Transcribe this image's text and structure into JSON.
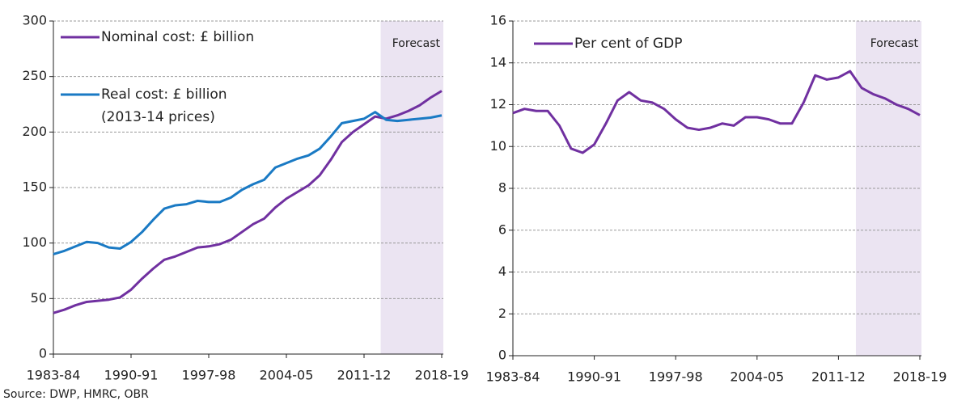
{
  "chart_data": [
    {
      "type": "line",
      "categories": [
        "1983-84",
        null,
        null,
        null,
        null,
        null,
        null,
        "1990-91",
        null,
        null,
        null,
        null,
        null,
        null,
        "1997-98",
        null,
        null,
        null,
        null,
        null,
        null,
        "2004-05",
        null,
        null,
        null,
        null,
        null,
        null,
        "2011-12",
        null,
        null,
        null,
        null,
        null,
        null,
        "2018-19"
      ],
      "series": [
        {
          "name": "Nominal cost: £ billion",
          "color": "#7030a0",
          "values": [
            37,
            40,
            44,
            47,
            48,
            49,
            51,
            58,
            68,
            77,
            85,
            88,
            92,
            96,
            97,
            99,
            103,
            110,
            117,
            122,
            132,
            140,
            146,
            152,
            161,
            175,
            191,
            200,
            207,
            214,
            212,
            215,
            219,
            224,
            231,
            237
          ]
        },
        {
          "name": "Real cost: £ billion\n(2013-14 prices)",
          "color": "#1a7ac4",
          "values": [
            90,
            93,
            97,
            101,
            100,
            96,
            95,
            101,
            110,
            121,
            131,
            134,
            135,
            138,
            137,
            137,
            141,
            148,
            153,
            157,
            168,
            172,
            176,
            179,
            185,
            196,
            208,
            210,
            212,
            218,
            211,
            210,
            211,
            212,
            213,
            215
          ]
        }
      ],
      "ylim": [
        0,
        300
      ],
      "yticks": [
        0,
        50,
        100,
        150,
        200,
        250,
        300
      ],
      "grid": true,
      "shaded_region": {
        "label": "Forecast",
        "from_index": 30,
        "color": "#ebe4f2"
      }
    },
    {
      "type": "line",
      "categories": [
        "1983-84",
        null,
        null,
        null,
        null,
        null,
        null,
        "1990-91",
        null,
        null,
        null,
        null,
        null,
        null,
        "1997-98",
        null,
        null,
        null,
        null,
        null,
        null,
        "2004-05",
        null,
        null,
        null,
        null,
        null,
        null,
        "2011-12",
        null,
        null,
        null,
        null,
        null,
        null,
        "2018-19"
      ],
      "series": [
        {
          "name": "Per cent of GDP",
          "color": "#7030a0",
          "values": [
            11.6,
            11.8,
            11.7,
            11.7,
            11.0,
            9.9,
            9.7,
            10.1,
            11.1,
            12.2,
            12.6,
            12.2,
            12.1,
            11.8,
            11.3,
            10.9,
            10.8,
            10.9,
            11.1,
            11.0,
            11.4,
            11.4,
            11.3,
            11.1,
            11.1,
            12.1,
            13.4,
            13.2,
            13.3,
            13.6,
            12.8,
            12.5,
            12.3,
            12.0,
            11.8,
            11.5
          ]
        }
      ],
      "ylim": [
        0,
        16
      ],
      "yticks": [
        0,
        2,
        4,
        6,
        8,
        10,
        12,
        14,
        16
      ],
      "grid": true,
      "shaded_region": {
        "label": "Forecast",
        "from_index": 30,
        "color": "#ebe4f2"
      }
    }
  ],
  "source": "Source: DWP, HMRC, OBR"
}
